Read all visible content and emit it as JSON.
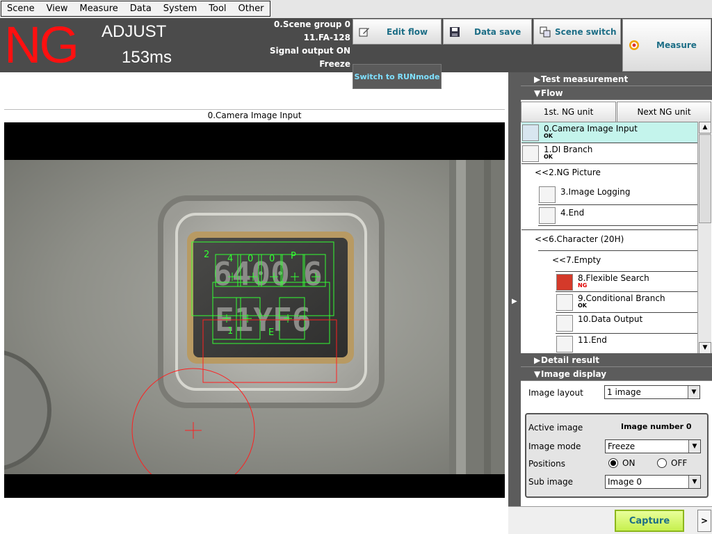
{
  "menu": [
    "Scene",
    "View",
    "Measure",
    "Data",
    "System",
    "Tool",
    "Other"
  ],
  "header": {
    "judgement": "NG",
    "mode": "ADJUST",
    "time": "153ms",
    "scene_group": "0.Scene group 0",
    "scene": "11.FA-128",
    "signal": "Signal output ON",
    "freeze": "Freeze"
  },
  "toolbar": {
    "edit_flow": "Edit flow",
    "data_save": "Data save",
    "scene_switch": "Scene switch",
    "measure": "Measure",
    "run_mode": "Switch to RUNmode"
  },
  "image": {
    "title": "0.Camera Image Input",
    "chars_top": [
      "2",
      "4",
      "0",
      "0",
      "P"
    ],
    "chars_bottom": [
      "1",
      "E"
    ]
  },
  "sections": {
    "test_measurement": "Test measurement",
    "flow": "Flow",
    "detail_result": "Detail result",
    "image_display": "Image display"
  },
  "flow": {
    "first_ng": "1st. NG unit",
    "next_ng": "Next NG unit",
    "units": [
      {
        "name": "0.Camera Image Input",
        "result": "OK"
      },
      {
        "name": "1.DI Branch",
        "result": "OK"
      },
      {
        "name": "<<2.NG Picture",
        "result": ""
      },
      {
        "name": "3.Image Logging",
        "result": ""
      },
      {
        "name": "4.End",
        "result": ""
      },
      {
        "name": "<<6.Character (20H)",
        "result": ""
      },
      {
        "name": "<<7.Empty",
        "result": ""
      },
      {
        "name": "8.Flexible Search",
        "result": "NG"
      },
      {
        "name": "9.Conditional Branch",
        "result": "OK"
      },
      {
        "name": "10.Data Output",
        "result": ""
      },
      {
        "name": "11.End",
        "result": ""
      }
    ]
  },
  "display": {
    "layout_label": "Image layout",
    "layout_value": "1 image",
    "active_label": "Active image",
    "active_value": "Image number 0",
    "mode_label": "Image mode",
    "mode_value": "Freeze",
    "positions_label": "Positions",
    "on_label": "ON",
    "off_label": "OFF",
    "sub_label": "Sub image",
    "sub_value": "Image 0"
  },
  "capture_label": "Capture",
  "more_label": ">",
  "colors": {
    "ng": "#ff1010",
    "ok": "#000000",
    "selected_row": "#c4f4ec",
    "overlay_green": "#33ff33",
    "overlay_red": "#ff2020"
  }
}
